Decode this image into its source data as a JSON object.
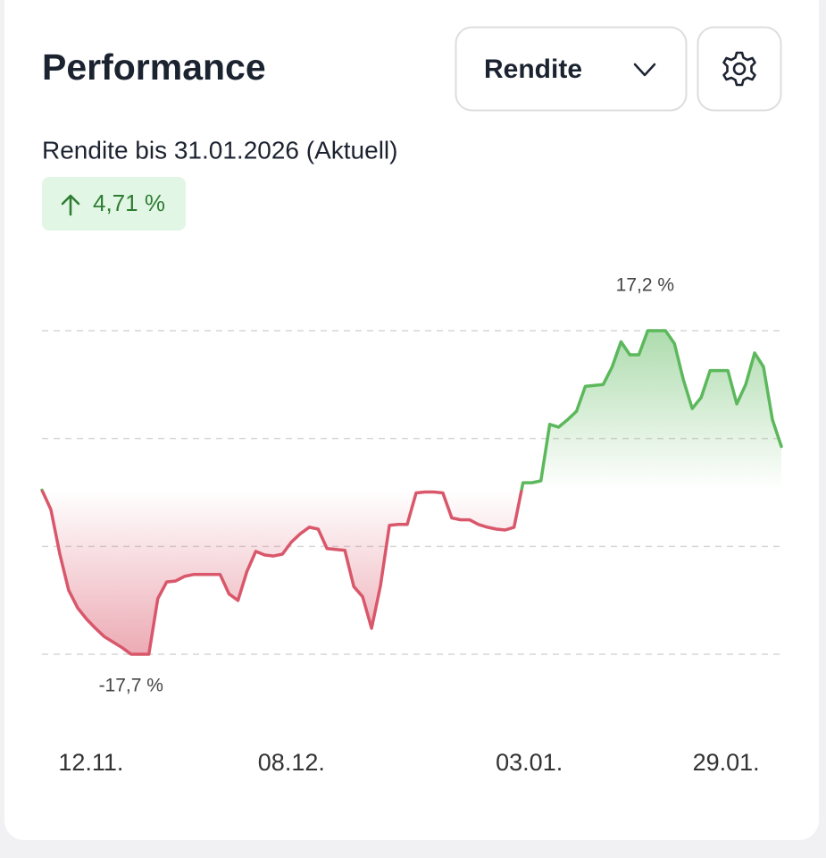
{
  "header": {
    "title": "Performance",
    "dropdown": "Rendite"
  },
  "summary": {
    "label": "Rendite bis 31.01.2026 (Aktuell)",
    "change": "4,71 %"
  },
  "chart_data": {
    "type": "line",
    "max_label": "17,2 %",
    "min_label": "-17,7 %",
    "positive_color": "#5cb85c",
    "negative_color": "#d9576a",
    "xlim": [
      0,
      83
    ],
    "ylim": [
      -17.7,
      17.2
    ],
    "xticks": [
      {
        "value": 5.5,
        "label": "12.11."
      },
      {
        "value": 28,
        "label": "08.12."
      },
      {
        "value": 54.7,
        "label": "03.01."
      },
      {
        "value": 76.8,
        "label": "29.01."
      }
    ],
    "grid_values": [
      17.2,
      5.57,
      -6.07,
      -17.7
    ],
    "grid": true,
    "values": [
      0.0,
      -2.1,
      -6.9,
      -10.8,
      -12.7,
      -13.9,
      -14.9,
      -15.8,
      -16.4,
      -17.0,
      -17.7,
      -17.7,
      -17.7,
      -11.7,
      -9.9,
      -9.8,
      -9.3,
      -9.1,
      -9.1,
      -9.1,
      -9.1,
      -11.2,
      -11.9,
      -8.8,
      -6.6,
      -7.0,
      -7.1,
      -6.9,
      -5.6,
      -4.7,
      -4.0,
      -4.2,
      -6.3,
      -6.4,
      -6.5,
      -10.4,
      -11.5,
      -14.9,
      -10.3,
      -3.8,
      -3.7,
      -3.7,
      -0.3,
      -0.2,
      -0.2,
      -0.3,
      -3.0,
      -3.2,
      -3.2,
      -3.7,
      -4.0,
      -4.2,
      -4.3,
      -4.0,
      0.8,
      0.8,
      1.0,
      7.1,
      6.8,
      7.6,
      8.5,
      11.2,
      11.3,
      11.4,
      13.3,
      16.0,
      14.6,
      14.6,
      17.2,
      17.2,
      17.2,
      15.8,
      11.9,
      8.8,
      10.0,
      12.9,
      12.9,
      12.9,
      9.3,
      11.4,
      14.8,
      13.3,
      7.6,
      4.71
    ]
  }
}
